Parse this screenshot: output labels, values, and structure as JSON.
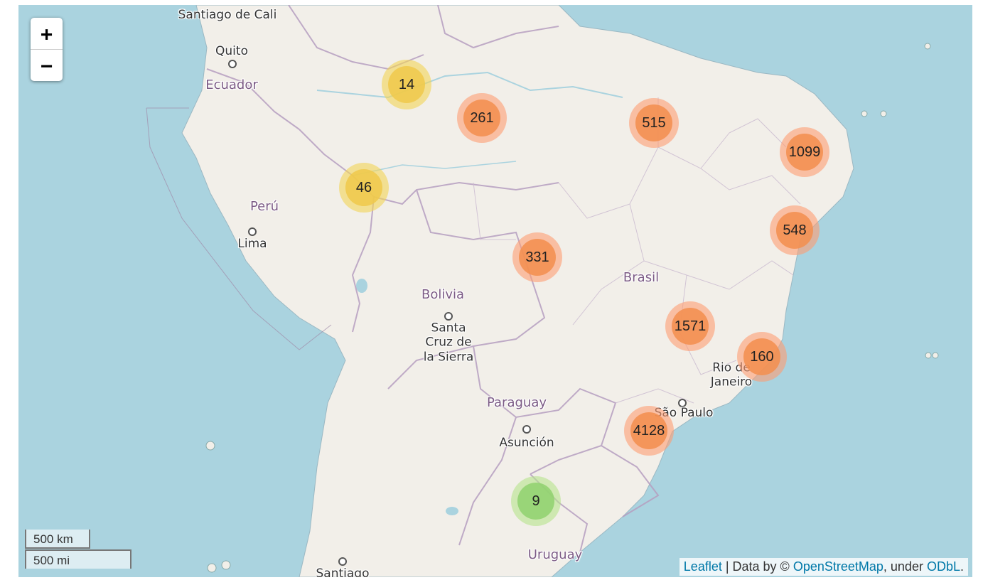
{
  "map": {
    "country_labels": [
      {
        "id": "ecuador",
        "text": "Ecuador"
      },
      {
        "id": "peru",
        "text": "Perú"
      },
      {
        "id": "bolivia",
        "text": "Bolivia"
      },
      {
        "id": "brasil",
        "text": "Brasil"
      },
      {
        "id": "paraguay",
        "text": "Paraguay"
      },
      {
        "id": "uruguay",
        "text": "Uruguay"
      }
    ],
    "city_labels": [
      {
        "id": "cali",
        "text": "Santiago de Cali"
      },
      {
        "id": "quito",
        "text": "Quito"
      },
      {
        "id": "lima",
        "text": "Lima"
      },
      {
        "id": "santacruz",
        "text": "Santa Cruz de la Sierra"
      },
      {
        "id": "asuncion",
        "text": "Asunción"
      },
      {
        "id": "rio",
        "text": "Rio de Janeiro"
      },
      {
        "id": "saopaulo",
        "text": "São Paulo"
      },
      {
        "id": "santiago",
        "text": "Santiago"
      }
    ],
    "clusters": [
      {
        "count": "14",
        "size_class": "small"
      },
      {
        "count": "261",
        "size_class": "medium"
      },
      {
        "count": "515",
        "size_class": "medium"
      },
      {
        "count": "1099",
        "size_class": "medium"
      },
      {
        "count": "46",
        "size_class": "small"
      },
      {
        "count": "548",
        "size_class": "medium"
      },
      {
        "count": "331",
        "size_class": "medium"
      },
      {
        "count": "1571",
        "size_class": "medium"
      },
      {
        "count": "160",
        "size_class": "medium"
      },
      {
        "count": "4128",
        "size_class": "medium"
      },
      {
        "count": "9",
        "size_class": "tiny"
      }
    ],
    "colors": {
      "tiny_outer": "#b5e28c",
      "tiny_inner": "#8fd16e",
      "small_outer": "#f1d357",
      "small_inner": "#f0c94a",
      "medium_outer": "#fd9c73",
      "medium_inner": "#f38e4d",
      "ocean": "#aad3df",
      "land": "#f2efe9"
    }
  },
  "controls": {
    "zoom_in": "+",
    "zoom_out": "−",
    "scale_km": "500 km",
    "scale_mi": "500 mi"
  },
  "attribution": {
    "leaflet": "Leaflet",
    "sep": " | Data by © ",
    "osm": "OpenStreetMap",
    "under": ", under ",
    "odbl": "ODbL",
    "end": "."
  }
}
